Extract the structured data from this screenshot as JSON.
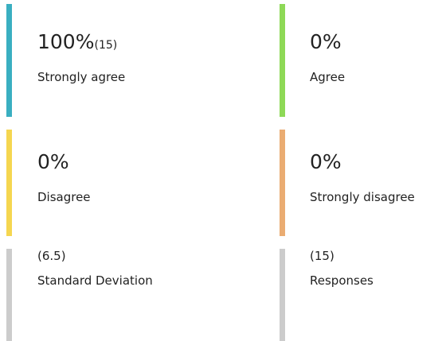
{
  "cards": [
    {
      "value": "100%",
      "count": "(15)",
      "label": "Strongly agree",
      "color": "#3aafc1"
    },
    {
      "value": "0%",
      "label": "Agree",
      "color": "#8ed957"
    },
    {
      "value": "0%",
      "label": "Disagree",
      "color": "#f5d650"
    },
    {
      "value": "0%",
      "label": "Strongly disagree",
      "color": "#eaac72"
    }
  ],
  "stats": [
    {
      "value": "(6.5)",
      "label": "Standard Deviation",
      "color": "#cccccc"
    },
    {
      "value": "(15)",
      "label": "Responses",
      "color": "#cccccc"
    }
  ]
}
